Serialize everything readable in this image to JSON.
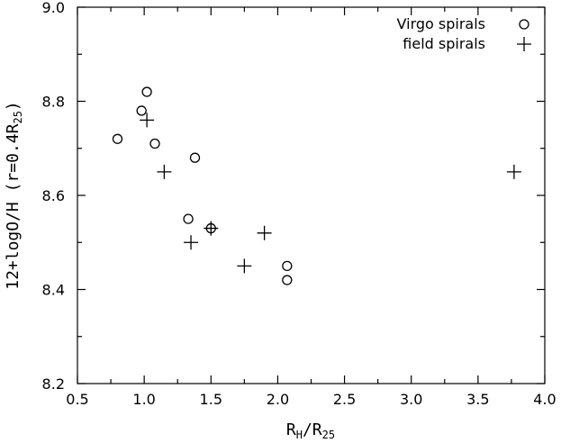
{
  "chart_data": {
    "type": "scatter",
    "title": "",
    "xlabel": {
      "base": "R",
      "sub": "H",
      "mid": "/R",
      "sub2": "25"
    },
    "ylabel": {
      "base": "12+logO/H (r=0.4R",
      "sub": "25",
      "end": ")"
    },
    "xlim": [
      0.5,
      4.0
    ],
    "ylim": [
      8.2,
      9.0
    ],
    "x_ticks": [
      0.5,
      1.0,
      1.5,
      2.0,
      2.5,
      3.0,
      3.5,
      4.0
    ],
    "x_tick_labels": [
      "0.5",
      "1.0",
      "1.5",
      "2.0",
      "2.5",
      "3.0",
      "3.5",
      "4.0"
    ],
    "x_minor_ticks": [
      0.75,
      1.25,
      1.75,
      2.25,
      2.75,
      3.25,
      3.75
    ],
    "y_ticks": [
      8.2,
      8.4,
      8.6,
      8.8,
      9.0
    ],
    "y_tick_labels": [
      "8.2",
      "8.4",
      "8.6",
      "8.8",
      "9.0"
    ],
    "y_minor_ticks": [
      8.3,
      8.5,
      8.7,
      8.9
    ],
    "grid": false,
    "legend_position": "top-right",
    "series": [
      {
        "name": "Virgo spirals",
        "marker": "circle",
        "points": [
          {
            "x": 0.8,
            "y": 8.72
          },
          {
            "x": 0.98,
            "y": 8.78
          },
          {
            "x": 1.02,
            "y": 8.82
          },
          {
            "x": 1.08,
            "y": 8.71
          },
          {
            "x": 1.38,
            "y": 8.68
          },
          {
            "x": 1.33,
            "y": 8.55
          },
          {
            "x": 1.5,
            "y": 8.53
          },
          {
            "x": 2.07,
            "y": 8.45
          },
          {
            "x": 2.07,
            "y": 8.42
          }
        ]
      },
      {
        "name": "field spirals",
        "marker": "plus",
        "points": [
          {
            "x": 1.02,
            "y": 8.76
          },
          {
            "x": 1.15,
            "y": 8.65
          },
          {
            "x": 1.35,
            "y": 8.5
          },
          {
            "x": 1.5,
            "y": 8.53
          },
          {
            "x": 1.75,
            "y": 8.45
          },
          {
            "x": 1.9,
            "y": 8.52
          },
          {
            "x": 3.77,
            "y": 8.65
          }
        ]
      }
    ]
  }
}
